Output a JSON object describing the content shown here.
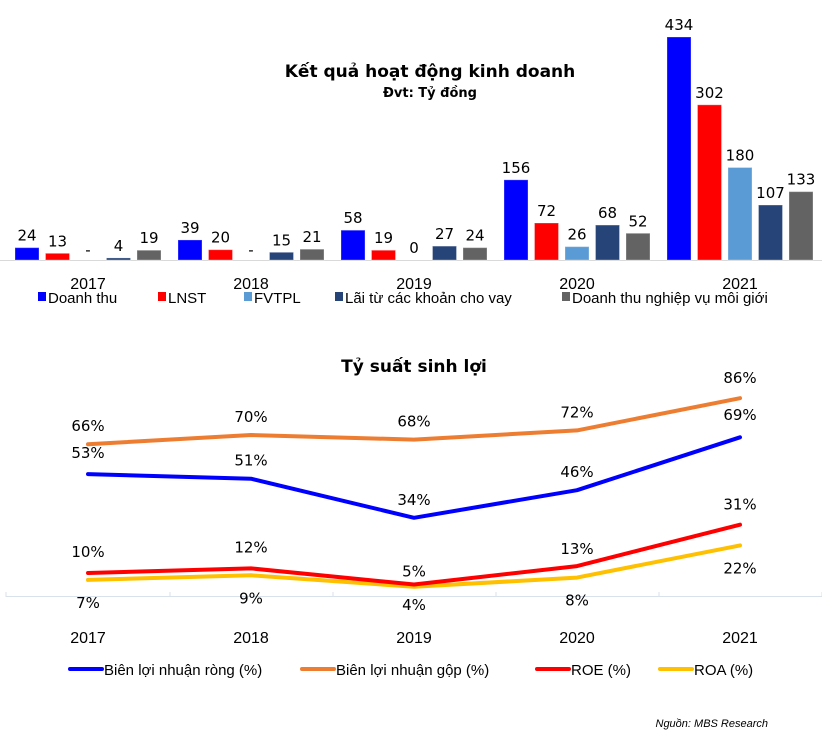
{
  "source": "Nguồn: MBS Research",
  "chart_data": [
    {
      "type": "bar",
      "title": "Kết quả hoạt động kinh doanh",
      "subtitle": "Đvt: Tỷ đồng",
      "xlabel": "",
      "ylabel": "",
      "categories": [
        "2017",
        "2018",
        "2019",
        "2020",
        "2021"
      ],
      "ylim": [
        0,
        434
      ],
      "grid": false,
      "legend_position": "bottom",
      "series": [
        {
          "name": "Doanh thu",
          "color": "#0000FF",
          "values": [
            24,
            39,
            58,
            156,
            434
          ],
          "labels": [
            "24",
            "39",
            "58",
            "156",
            "434"
          ]
        },
        {
          "name": "LNST",
          "color": "#FF0000",
          "values": [
            13,
            20,
            19,
            72,
            302
          ],
          "labels": [
            "13",
            "20",
            "19",
            "72",
            "302"
          ]
        },
        {
          "name": "FVTPL",
          "color": "#5B9BD5",
          "values": [
            0,
            0,
            0,
            26,
            180
          ],
          "labels": [
            "-",
            "-",
            "0",
            "26",
            "180"
          ]
        },
        {
          "name": "Lãi từ các khoản cho vay",
          "color": "#264478",
          "values": [
            4,
            15,
            27,
            68,
            107
          ],
          "labels": [
            "4",
            "15",
            "27",
            "68",
            "107"
          ]
        },
        {
          "name": "Doanh thu nghiệp vụ môi giới",
          "color": "#636363",
          "values": [
            19,
            21,
            24,
            52,
            133
          ],
          "labels": [
            "19",
            "21",
            "24",
            "52",
            "133"
          ]
        }
      ]
    },
    {
      "type": "line",
      "title": "Tỷ suất sinh lợi",
      "xlabel": "",
      "ylabel": "",
      "categories": [
        "2017",
        "2018",
        "2019",
        "2020",
        "2021"
      ],
      "ylim": [
        0,
        100
      ],
      "grid": false,
      "legend_position": "bottom",
      "series": [
        {
          "name": "Biên lợi nhuận ròng (%)",
          "color": "#0000FF",
          "values": [
            53,
            51,
            34,
            46,
            69
          ],
          "labels": [
            "53%",
            "51%",
            "34%",
            "46%",
            "69%"
          ]
        },
        {
          "name": "Biên lợi nhuận gộp (%)",
          "color": "#ED7D31",
          "values": [
            66,
            70,
            68,
            72,
            86
          ],
          "labels": [
            "66%",
            "70%",
            "68%",
            "72%",
            "86%"
          ]
        },
        {
          "name": "ROE (%)",
          "color": "#FF0000",
          "values": [
            10,
            12,
            5,
            13,
            31
          ],
          "labels": [
            "10%",
            "12%",
            "5%",
            "13%",
            "31%"
          ]
        },
        {
          "name": "ROA (%)",
          "color": "#FFC000",
          "values": [
            7,
            9,
            4,
            8,
            22
          ],
          "labels": [
            "7%",
            "9%",
            "4%",
            "8%",
            "22%"
          ]
        }
      ]
    }
  ]
}
